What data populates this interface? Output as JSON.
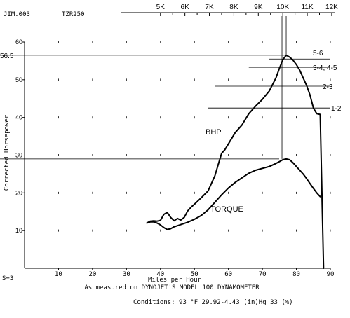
{
  "header": {
    "file_label": "JIM.003",
    "model_label": "TZR250"
  },
  "chart_data": {
    "type": "line",
    "xlabel": "Miles per Hour",
    "ylabel": "Corrected Horsepower",
    "xlim": [
      0,
      90
    ],
    "ylim": [
      0,
      60
    ],
    "x_ticks": [
      10,
      20,
      30,
      40,
      50,
      60,
      70,
      80,
      90
    ],
    "x_tick_labels": [
      "10",
      "20",
      "30",
      "40",
      "50",
      "60",
      "70",
      "80",
      "90"
    ],
    "y_ticks": [
      10,
      20,
      30,
      40,
      50,
      60
    ],
    "y_tick_labels": [
      "10",
      "20",
      "30",
      "40",
      "50",
      "60"
    ],
    "rpm_axis": {
      "labels": [
        "5K",
        "6K",
        "7K",
        "8K",
        "9K",
        "10K",
        "11K",
        "12K"
      ],
      "mph": [
        40,
        47.2,
        54.4,
        61.6,
        68.8,
        76,
        83.2,
        90.4
      ]
    },
    "series": [
      {
        "name": "BHP",
        "x": [
          36,
          37,
          38,
          39,
          40,
          41,
          42,
          43,
          44,
          45,
          46,
          47,
          48,
          49,
          50,
          52,
          54,
          56,
          57,
          58,
          59,
          60,
          62,
          64,
          66,
          68,
          70,
          72,
          74,
          75,
          76,
          77,
          78,
          79,
          80,
          81,
          82,
          83,
          84,
          85,
          86,
          87,
          88
        ],
        "y": [
          12,
          12.5,
          12.6,
          12.5,
          12.7,
          14.3,
          14.8,
          13.5,
          12.6,
          13.2,
          12.8,
          13.5,
          15.2,
          16.2,
          17.0,
          18.7,
          20.5,
          24.5,
          27.5,
          30.5,
          31.5,
          33.0,
          36.0,
          38.0,
          41.0,
          43.0,
          44.8,
          47.0,
          50.5,
          53.0,
          55.3,
          56.5,
          56.0,
          55.2,
          54.0,
          52.5,
          50.5,
          48.5,
          46.0,
          42.5,
          41.0,
          40.8,
          0
        ]
      },
      {
        "name": "TORQUE",
        "x": [
          36,
          37,
          38,
          39,
          40,
          41,
          42,
          43,
          44,
          46,
          48,
          50,
          52,
          54,
          56,
          58,
          60,
          62,
          64,
          66,
          68,
          70,
          72,
          74,
          75,
          76,
          77,
          78,
          79,
          80,
          81,
          82,
          83,
          84,
          85,
          86,
          87
        ],
        "y": [
          12.0,
          12.3,
          12.3,
          12.0,
          11.5,
          10.8,
          10.3,
          10.5,
          11.0,
          11.6,
          12.2,
          13.0,
          14.0,
          15.5,
          17.5,
          19.5,
          21.3,
          22.8,
          24.0,
          25.2,
          26.0,
          26.5,
          27.0,
          27.8,
          28.3,
          28.8,
          29.0,
          28.8,
          28.0,
          27.0,
          26.0,
          25.0,
          23.8,
          22.5,
          21.2,
          20.0,
          19.0
        ]
      }
    ],
    "annotations": {
      "bhp_label": "BHP",
      "torque_label": "TORQUE",
      "peak_hp_label": "56.5",
      "gear_labels": [
        "5-6",
        "3-4, 4-5",
        "2-3",
        "1-2"
      ],
      "gear_y": [
        55.5,
        53.3,
        48.3,
        42.5
      ],
      "gear_x_start": [
        72,
        66,
        56,
        54
      ]
    }
  },
  "footer": {
    "left_code": "S=3",
    "source_text": "As measured on DYNOJET'S MODEL 100 DYNAMOMETER",
    "conditions_text": "Conditions: 93 °F  29.92-4.43 (in)Hg  33 (%)"
  },
  "colors": {
    "ink": "#000000",
    "background": "#ffffff"
  }
}
